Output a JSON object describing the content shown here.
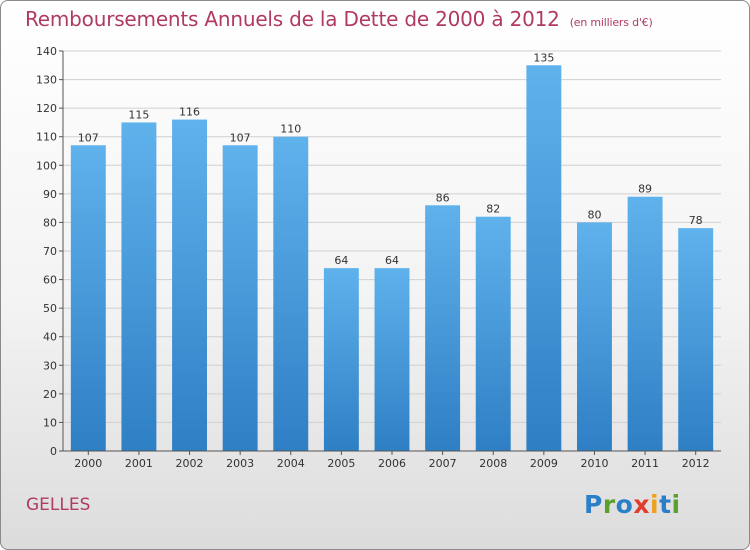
{
  "header": {
    "title": "Remboursements Annuels de la Dette de 2000 à 2012",
    "unit": "(en milliers d'€)"
  },
  "footer": {
    "commune": "GELLES",
    "logo_letters": [
      {
        "ch": "P",
        "color": "#2b7fc9"
      },
      {
        "ch": "r",
        "color": "#5aa02c"
      },
      {
        "ch": "o",
        "color": "#2b7fc9"
      },
      {
        "ch": "x",
        "color": "#e23c2f"
      },
      {
        "ch": "i",
        "color": "#f0a020"
      },
      {
        "ch": "t",
        "color": "#2b7fc9"
      },
      {
        "ch": "i",
        "color": "#5aa02c"
      }
    ]
  },
  "colors": {
    "title": "#b03a63",
    "bar_top": "#5fb2ec",
    "bar_bottom": "#2e7fc4",
    "grid": "#d0d0d0"
  },
  "chart_data": {
    "type": "bar",
    "title": "Remboursements Annuels de la Dette de 2000 à 2012",
    "xlabel": "",
    "ylabel": "",
    "categories": [
      "2000",
      "2001",
      "2002",
      "2003",
      "2004",
      "2005",
      "2006",
      "2007",
      "2008",
      "2009",
      "2010",
      "2011",
      "2012"
    ],
    "values": [
      107,
      115,
      116,
      107,
      110,
      64,
      64,
      86,
      82,
      135,
      80,
      89,
      78
    ],
    "ylim": [
      0,
      140
    ],
    "yticks": [
      0,
      10,
      20,
      30,
      40,
      50,
      60,
      70,
      80,
      90,
      100,
      110,
      120,
      130,
      140
    ],
    "grid": true
  }
}
